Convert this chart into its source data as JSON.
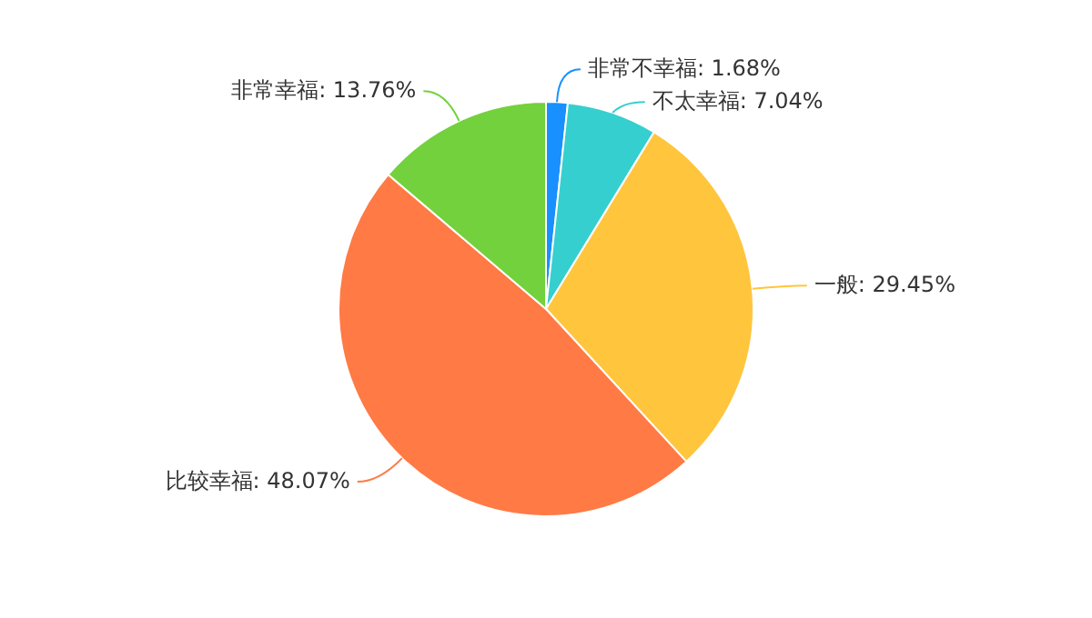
{
  "chart_data": {
    "type": "pie",
    "categories": [
      "非常不幸福",
      "不太幸福",
      "一般",
      "比较幸福",
      "非常幸福"
    ],
    "values": [
      1.68,
      7.04,
      29.45,
      48.07,
      13.76
    ],
    "colors": [
      "#1890ff",
      "#36cfcf",
      "#ffc53d",
      "#ff7a45",
      "#73d13d"
    ],
    "value_labels": [
      ": 1.68%",
      ": 7.04%",
      ": 29.45%",
      ": 48.07%",
      ": 13.76%"
    ]
  }
}
